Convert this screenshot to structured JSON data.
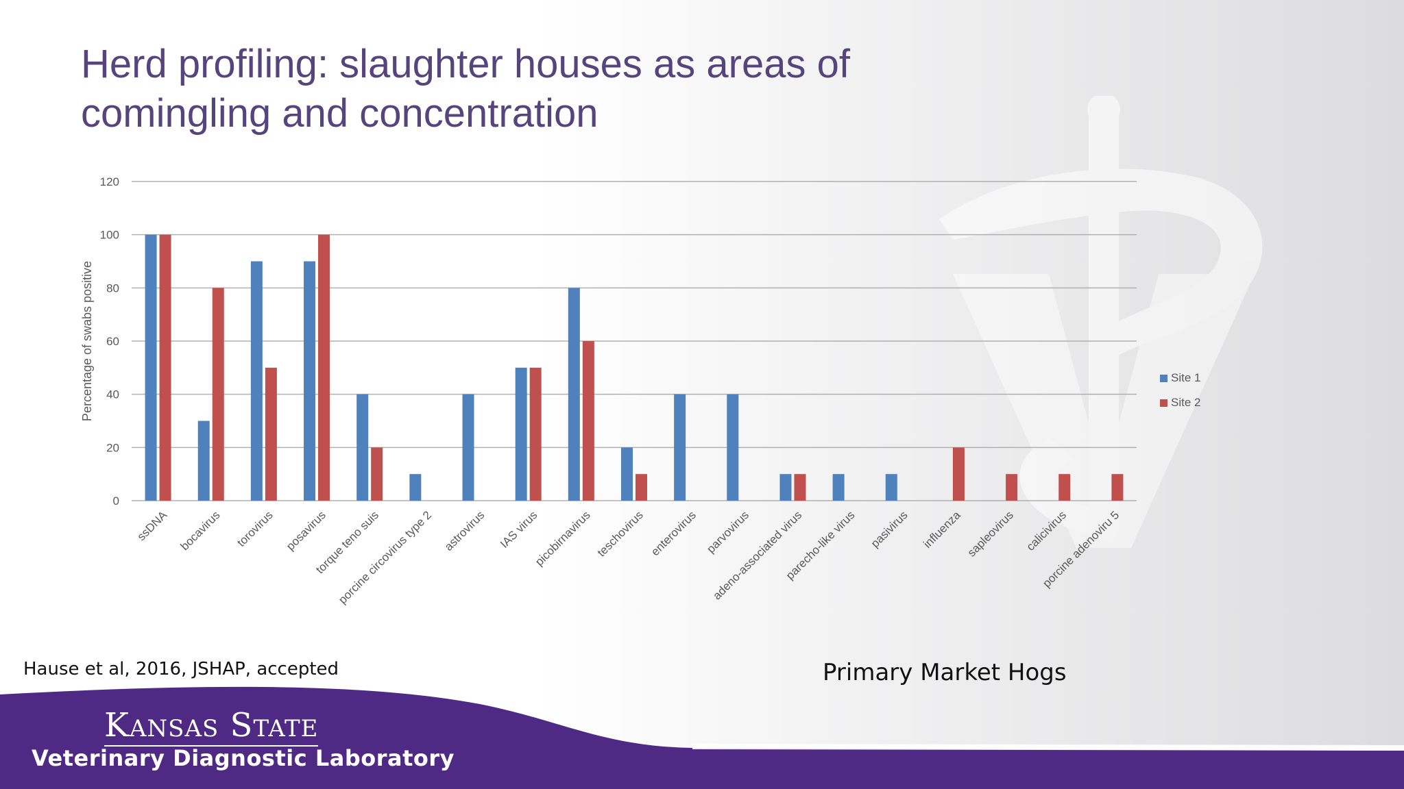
{
  "slide": {
    "title": "Herd profiling: slaughter houses as areas of comingling and concentration",
    "citation": "Hause et al, 2016, JSHAP, accepted",
    "subtitle": "Primary Market Hogs",
    "logo_line1": "Kansas State",
    "logo_line2": "Veterinary Diagnostic Laboratory"
  },
  "colors": {
    "title": "#56457d",
    "site1": "#4f81bd",
    "site2": "#c0504d",
    "footer_purple": "#4e2a84",
    "gridline": "#b0b0b0",
    "axis_text": "#595959"
  },
  "chart_data": {
    "type": "bar",
    "ylabel": "Percentage of swabs positive",
    "ylim": [
      0,
      120
    ],
    "yticks": [
      0,
      20,
      40,
      60,
      80,
      100,
      120
    ],
    "grid": true,
    "legend_position": "right",
    "categories": [
      "ssDNA",
      "bocavirus",
      "torovirus",
      "posavirus",
      "torque teno suis",
      "porcine circovirus type 2",
      "astrovirus",
      "IAS virus",
      "picobirnavirus",
      "teschovirus",
      "enterovirus",
      "parvovirus",
      "adeno-associated virus",
      "parecho-like virus",
      "pasivirus",
      "influenza",
      "sapleovirus",
      "calicivirus",
      "porcine adenoviru 5"
    ],
    "series": [
      {
        "name": "Site 1",
        "values": [
          100,
          30,
          90,
          90,
          40,
          10,
          40,
          50,
          80,
          20,
          40,
          40,
          10,
          10,
          10,
          0,
          0,
          0,
          0
        ]
      },
      {
        "name": "Site 2",
        "values": [
          100,
          80,
          50,
          100,
          20,
          0,
          0,
          50,
          60,
          10,
          0,
          0,
          10,
          0,
          0,
          20,
          10,
          10,
          10
        ]
      }
    ]
  }
}
